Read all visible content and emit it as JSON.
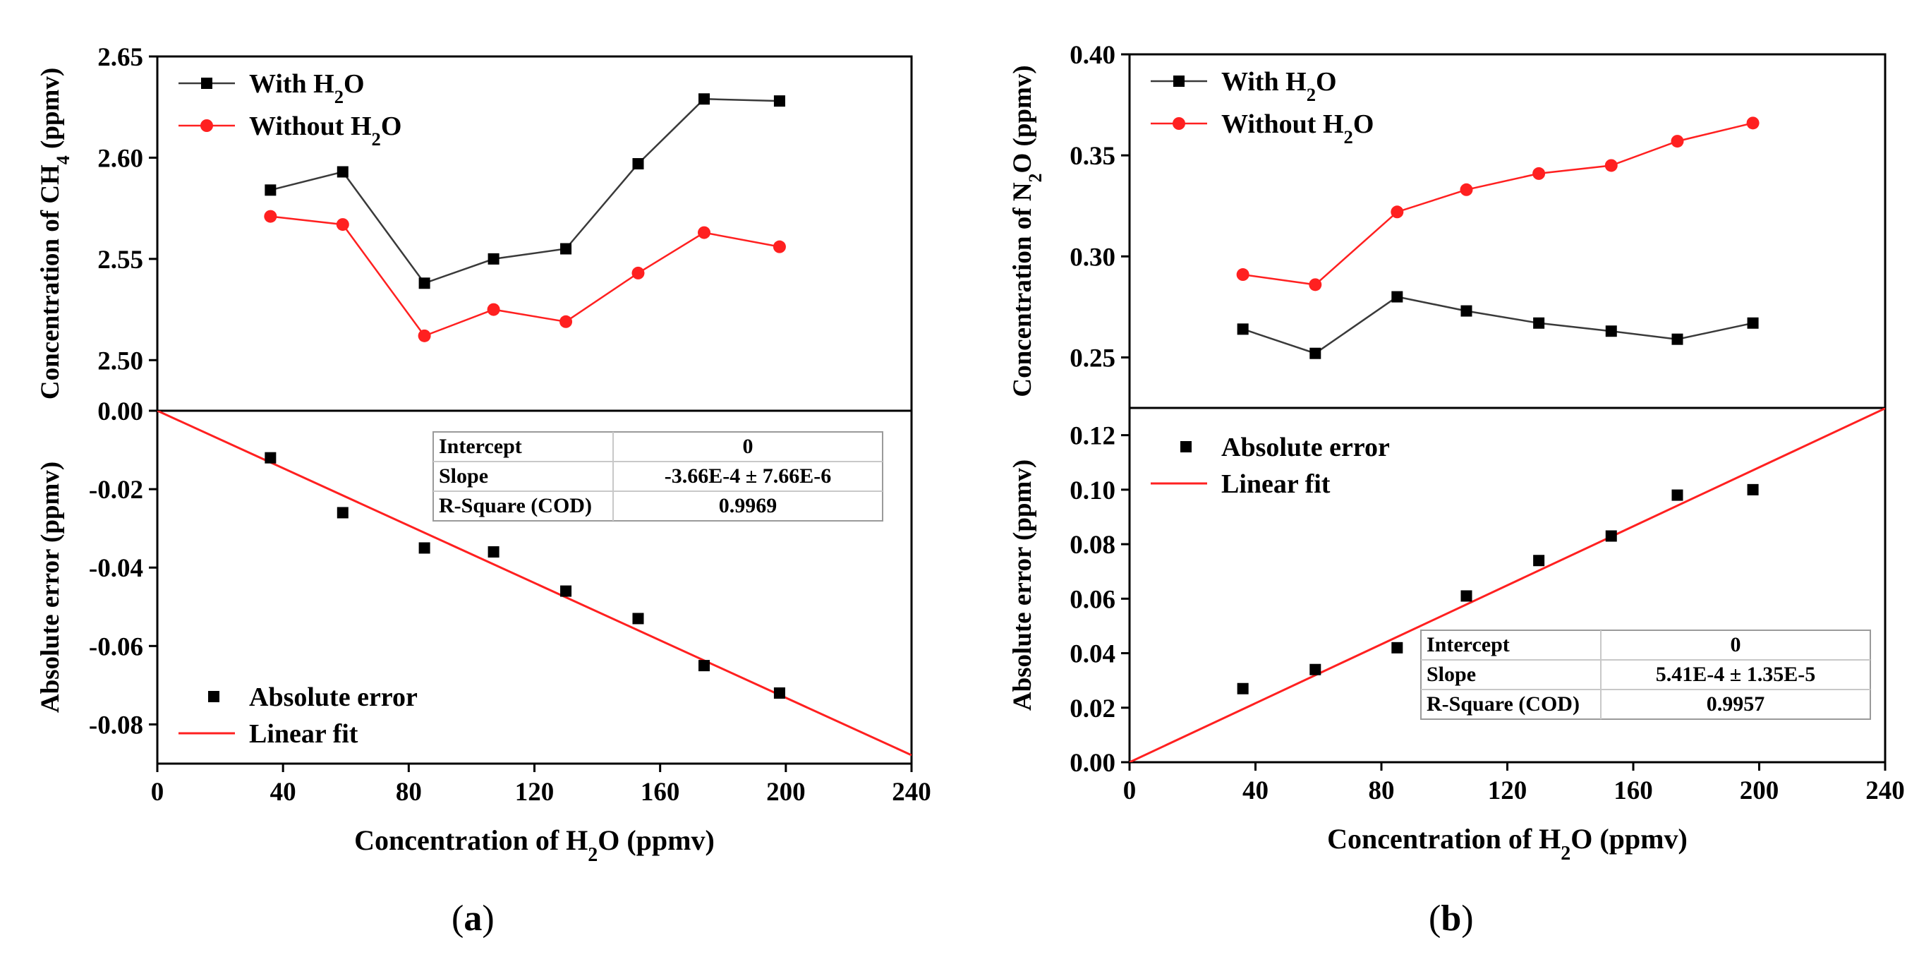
{
  "chart_data": [
    {
      "id": "a",
      "panel_label": "a",
      "type": "line",
      "top": {
        "ylabel_main": "Concentration of CH",
        "ylabel_sub": "4",
        "ylabel_tail": " (ppmv)",
        "ylim": [
          2.475,
          2.65
        ],
        "yticks": [
          2.5,
          2.55,
          2.6,
          2.65
        ],
        "ytick_labels": [
          "2.50",
          "2.55",
          "2.60",
          "2.65"
        ],
        "legend_position": "top-left",
        "series": [
          {
            "name": "With H2O",
            "label_main": "With H",
            "label_sub": "2",
            "label_tail": "O",
            "color": "#3a3a3a",
            "marker": "square",
            "x": [
              36,
              59,
              85,
              107,
              130,
              153,
              174,
              198
            ],
            "y": [
              2.584,
              2.593,
              2.538,
              2.55,
              2.555,
              2.597,
              2.629,
              2.628
            ]
          },
          {
            "name": "Without H2O",
            "label_main": "Without H",
            "label_sub": "2",
            "label_tail": "O",
            "color": "#ff2020",
            "marker": "circle",
            "x": [
              36,
              59,
              85,
              107,
              130,
              153,
              174,
              198
            ],
            "y": [
              2.571,
              2.567,
              2.512,
              2.525,
              2.519,
              2.543,
              2.563,
              2.556
            ]
          }
        ]
      },
      "bottom": {
        "ylabel": "Absolute error (ppmv)",
        "ylim": [
          -0.09,
          0.0
        ],
        "yticks": [
          0.0,
          -0.02,
          -0.04,
          -0.06,
          -0.08
        ],
        "ytick_labels": [
          "0.00",
          "-0.02",
          "-0.04",
          "-0.06",
          "-0.08"
        ],
        "legend_position": "bottom-left",
        "series": [
          {
            "name": "Absolute error",
            "marker": "square",
            "color": "#000000",
            "x": [
              36,
              59,
              85,
              107,
              130,
              153,
              174,
              198
            ],
            "y": [
              -0.012,
              -0.026,
              -0.035,
              -0.036,
              -0.046,
              -0.053,
              -0.065,
              -0.072
            ]
          }
        ],
        "fit": {
          "name": "Linear fit",
          "color": "#ff2020",
          "intercept": 0,
          "slope": -0.000366
        },
        "fit_table_position": "top-right",
        "fit_table": [
          [
            "Intercept",
            "0"
          ],
          [
            "Slope",
            "-3.66E-4 ± 7.66E-6"
          ],
          [
            "R-Square (COD)",
            "0.9969"
          ]
        ]
      },
      "xlim": [
        0,
        240
      ],
      "xticks": [
        0,
        40,
        80,
        120,
        160,
        200,
        240
      ],
      "xtick_labels": [
        "0",
        "40",
        "80",
        "120",
        "160",
        "200",
        "240"
      ],
      "xlabel_main": "Concentration of H",
      "xlabel_sub": "2",
      "xlabel_tail": "O (ppmv)"
    },
    {
      "id": "b",
      "panel_label": "b",
      "type": "line",
      "top": {
        "ylabel_main": "Concentration of N",
        "ylabel_sub": "2",
        "ylabel_tail": "O (ppmv)",
        "ylim": [
          0.225,
          0.4
        ],
        "yticks": [
          0.25,
          0.3,
          0.35,
          0.4
        ],
        "ytick_labels": [
          "0.25",
          "0.30",
          "0.35",
          "0.40"
        ],
        "legend_position": "top-left",
        "series": [
          {
            "name": "With H2O",
            "label_main": "With H",
            "label_sub": "2",
            "label_tail": "O",
            "color": "#3a3a3a",
            "marker": "square",
            "x": [
              36,
              59,
              85,
              107,
              130,
              153,
              174,
              198
            ],
            "y": [
              0.264,
              0.252,
              0.28,
              0.273,
              0.267,
              0.263,
              0.259,
              0.267
            ]
          },
          {
            "name": "Without H2O",
            "label_main": "Without H",
            "label_sub": "2",
            "label_tail": "O",
            "color": "#ff2020",
            "marker": "circle",
            "x": [
              36,
              59,
              85,
              107,
              130,
              153,
              174,
              198
            ],
            "y": [
              0.291,
              0.286,
              0.322,
              0.333,
              0.341,
              0.345,
              0.357,
              0.366
            ]
          }
        ]
      },
      "bottom": {
        "ylabel": "Absolute error (ppmv)",
        "ylim": [
          0.0,
          0.13
        ],
        "yticks": [
          0.0,
          0.02,
          0.04,
          0.06,
          0.08,
          0.1,
          0.12
        ],
        "ytick_labels": [
          "0.00",
          "0.02",
          "0.04",
          "0.06",
          "0.08",
          "0.10",
          "0.12"
        ],
        "legend_position": "top-left",
        "series": [
          {
            "name": "Absolute error",
            "marker": "square",
            "color": "#000000",
            "x": [
              36,
              59,
              85,
              107,
              130,
              153,
              174,
              198
            ],
            "y": [
              0.027,
              0.034,
              0.042,
              0.061,
              0.074,
              0.083,
              0.098,
              0.1
            ]
          }
        ],
        "fit": {
          "name": "Linear fit",
          "color": "#ff2020",
          "intercept": 0,
          "slope": 0.000541
        },
        "fit_table_position": "bottom-right",
        "fit_table": [
          [
            "Intercept",
            "0"
          ],
          [
            "Slope",
            "5.41E-4 ± 1.35E-5"
          ],
          [
            "R-Square (COD)",
            "0.9957"
          ]
        ]
      },
      "xlim": [
        0,
        240
      ],
      "xticks": [
        0,
        40,
        80,
        120,
        160,
        200,
        240
      ],
      "xtick_labels": [
        "0",
        "40",
        "80",
        "120",
        "160",
        "200",
        "240"
      ],
      "xlabel_main": "Concentration of H",
      "xlabel_sub": "2",
      "xlabel_tail": "O (ppmv)"
    }
  ]
}
